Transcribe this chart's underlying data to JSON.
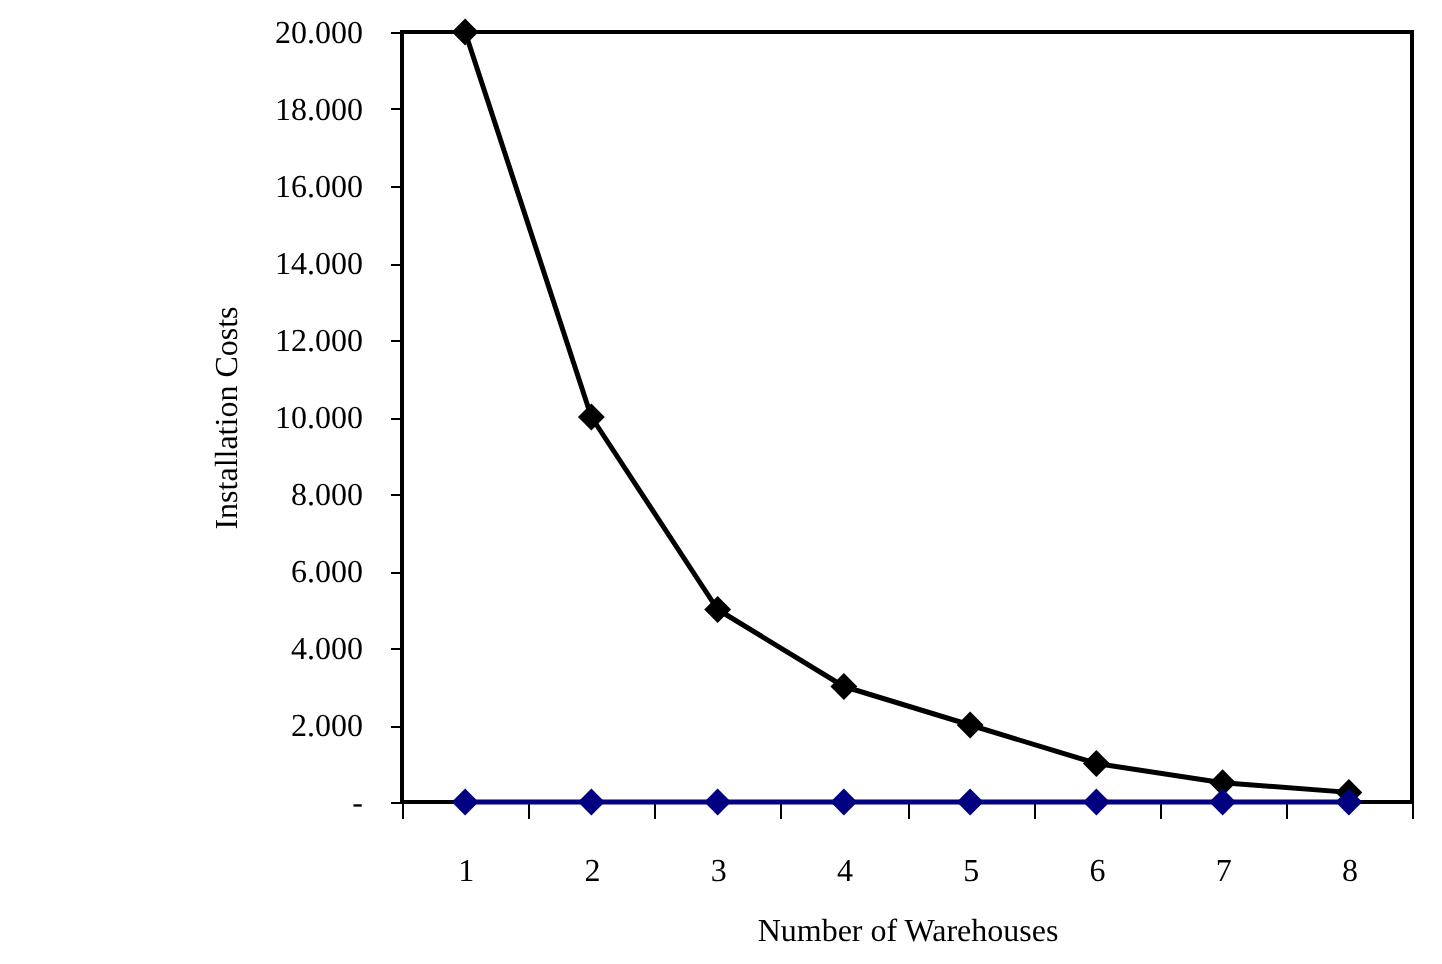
{
  "chart_data": {
    "type": "line",
    "xlabel": "Number of Warehouses",
    "ylabel": "Installation Costs",
    "categories": [
      "1",
      "2",
      "3",
      "4",
      "5",
      "6",
      "7",
      "8"
    ],
    "series": [
      {
        "color": "#000000",
        "values": [
          20000,
          10000,
          5000,
          3000,
          2000,
          1000,
          500,
          250
        ]
      },
      {
        "color": "#000080",
        "values": [
          0,
          0,
          0,
          0,
          0,
          0,
          0,
          0
        ]
      }
    ],
    "ylim": [
      0,
      20000
    ],
    "yticks": [
      {
        "value": 0,
        "label": "-"
      },
      {
        "value": 2000,
        "label": "2.000"
      },
      {
        "value": 4000,
        "label": "4.000"
      },
      {
        "value": 6000,
        "label": "6.000"
      },
      {
        "value": 8000,
        "label": "8.000"
      },
      {
        "value": 10000,
        "label": "10.000"
      },
      {
        "value": 12000,
        "label": "12.000"
      },
      {
        "value": 14000,
        "label": "14.000"
      },
      {
        "value": 16000,
        "label": "16.000"
      },
      {
        "value": 18000,
        "label": "18.000"
      },
      {
        "value": 20000,
        "label": "20.000"
      }
    ],
    "marker": "diamond",
    "line_style": "solid"
  }
}
